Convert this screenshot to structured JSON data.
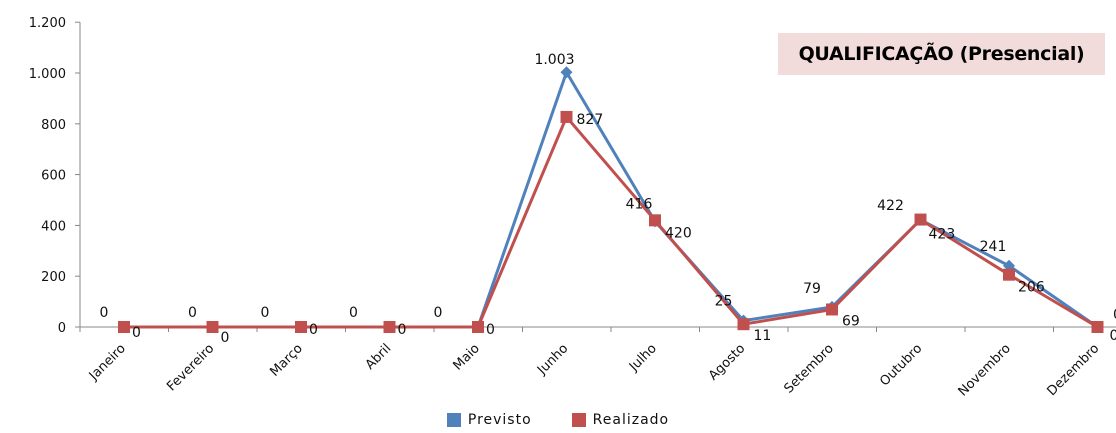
{
  "chart_data": {
    "type": "line",
    "title": "QUALIFICAÇÃO (Presencial)",
    "categories": [
      "Janeiro",
      "Fevereiro",
      "Março",
      "Abril",
      "Maio",
      "Junho",
      "Julho",
      "Agosto",
      "Setembro",
      "Outubro",
      "Novembro",
      "Dezembro"
    ],
    "ylim": [
      0,
      1200
    ],
    "yticks": [
      0,
      200,
      400,
      600,
      800,
      1000,
      1200
    ],
    "ytick_labels": [
      "0",
      "200",
      "400",
      "600",
      "800",
      "1.000",
      "1.200"
    ],
    "grid": false,
    "legend_position": "bottom",
    "series": [
      {
        "name": "Previsto",
        "color": "#4f81bd",
        "marker": "diamond",
        "values": [
          0,
          0,
          0,
          0,
          0,
          1003,
          416,
          25,
          79,
          422,
          241,
          0
        ],
        "labels": [
          "0",
          "0",
          "0",
          "0",
          "0",
          "1.003",
          "416",
          "25",
          "79",
          "422",
          "241",
          "0"
        ]
      },
      {
        "name": "Realizado",
        "color": "#c0504d",
        "marker": "square",
        "values": [
          0,
          0,
          0,
          0,
          0,
          827,
          420,
          11,
          69,
          423,
          206,
          0
        ],
        "labels": [
          "0",
          "0",
          "0",
          "0",
          "0",
          "827",
          "420",
          "11",
          "69",
          "423",
          "206",
          "0"
        ]
      }
    ]
  }
}
